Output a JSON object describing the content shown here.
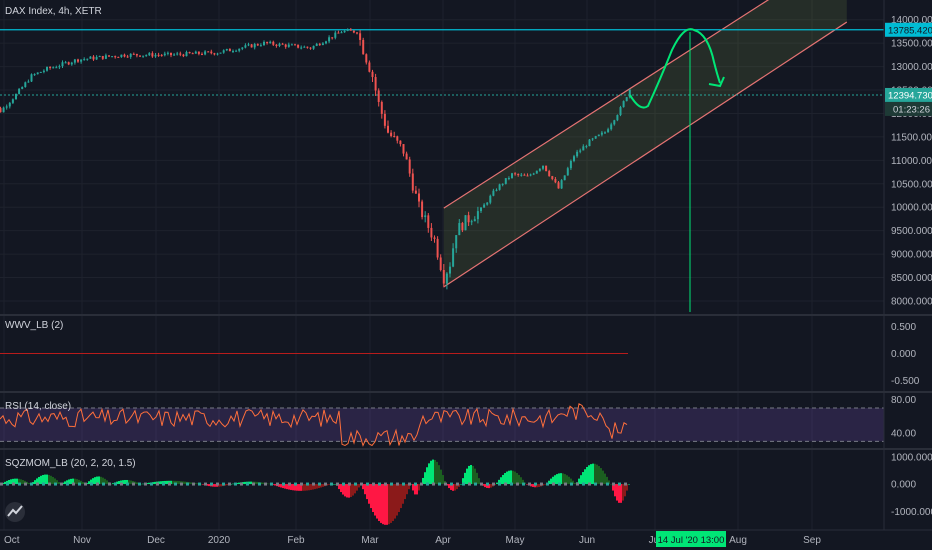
{
  "chart_data": {
    "type": "candlestick",
    "title": "DAX Index, 4h, XETR",
    "x_ticks": [
      "Oct",
      "Nov",
      "Dec",
      "2020",
      "Feb",
      "Mar",
      "Apr",
      "May",
      "Jun",
      "Jul",
      "Aug",
      "Sep"
    ],
    "price_axis": {
      "range": [
        7700,
        14250
      ],
      "ticks": [
        "14000.000",
        "13500.000",
        "13000.000",
        "12500.000",
        "12000.000",
        "11500.000",
        "11000.000",
        "10500.000",
        "10000.000",
        "9500.000",
        "9000.000",
        "8500.000",
        "8000.000"
      ]
    },
    "price_series": {
      "name": "DAX Index",
      "x": [
        0,
        5,
        10,
        15,
        20,
        30,
        45,
        60,
        75,
        90,
        105,
        115,
        120,
        125,
        127,
        130,
        135,
        140,
        145,
        148,
        150,
        152,
        155,
        160,
        165,
        170,
        175,
        180,
        185,
        190,
        195,
        200,
        205,
        210,
        215,
        220,
        225,
        228,
        230
      ],
      "close": [
        12300,
        12050,
        12400,
        12800,
        12950,
        13150,
        13250,
        13250,
        13300,
        13500,
        13400,
        13750,
        13750,
        12800,
        12200,
        11600,
        11200,
        10000,
        9300,
        8500,
        8800,
        9500,
        9700,
        9950,
        10400,
        10700,
        10650,
        10900,
        10400,
        11100,
        11400,
        11600,
        12100,
        12800,
        12600,
        12100,
        11800,
        12300,
        12394.73
      ]
    },
    "horizontal_levels": [
      {
        "value": 13785.42,
        "label": "13785.420",
        "color": "#00bcd4"
      },
      {
        "value": 12394.73,
        "label": "12394.730",
        "color": "#26a69a"
      }
    ],
    "countdown_label": "01:23:26",
    "channel": {
      "lower_start": [
        148,
        8300
      ],
      "lower_end": [
        278,
        13950
      ],
      "upper_start": [
        148,
        9980
      ],
      "upper_end": [
        278,
        15500
      ],
      "color": "#e57373"
    },
    "projection": {
      "color": "#00e676"
    },
    "vertical_marker": {
      "label": "14 Jul '20 13:00",
      "color": "#00e676"
    },
    "indicators": [
      {
        "name": "WWV_LB (2)",
        "ticks": [
          "0.500",
          "0.000",
          "-0.500"
        ],
        "range": [
          -0.7,
          0.7
        ],
        "value": 0
      },
      {
        "name": "RSI (14, close)",
        "ticks": [
          "80.00",
          "40.00"
        ],
        "range": [
          22,
          88
        ],
        "band": [
          30,
          70
        ]
      },
      {
        "name": "SQZMOM_LB (20, 2, 20, 1.5)",
        "ticks": [
          "1000.000",
          "0.000",
          "-1000.000"
        ],
        "range": [
          -1650,
          1250
        ]
      }
    ]
  },
  "colors": {
    "bg": "#131722",
    "grid": "#1f2330",
    "up": "#26a69a",
    "down": "#ef5350",
    "text": "#b2b5be"
  }
}
